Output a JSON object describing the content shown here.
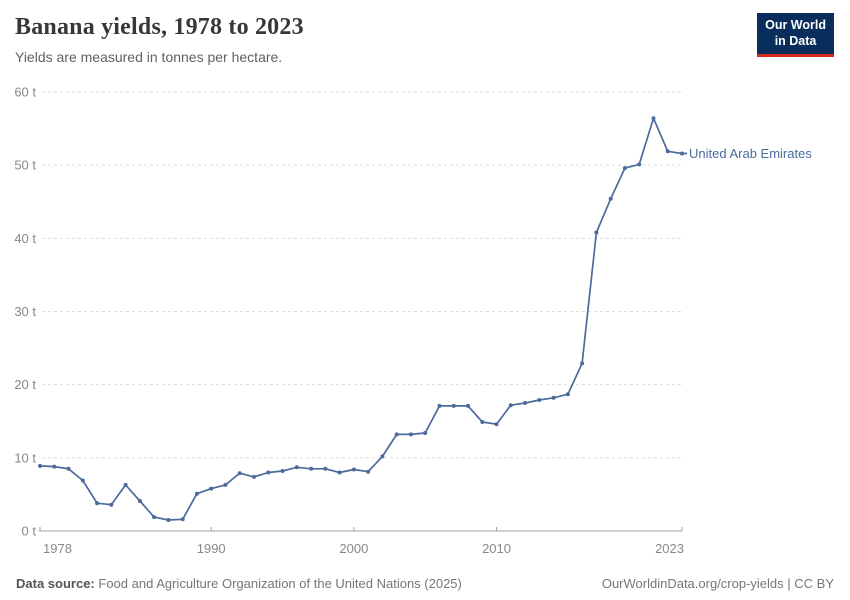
{
  "page": {
    "title": "Banana yields, 1978 to 2023",
    "subtitle": "Yields are measured in tonnes per hectare.",
    "logo": {
      "line1": "Our World",
      "line2": "in Data",
      "bg_color": "#0A2E5C",
      "accent_color": "#D42B21"
    },
    "footer": {
      "source_label": "Data source:",
      "source_text": "Food and Agriculture Organization of the United Nations (2025)",
      "credit": "OurWorldinData.org/crop-yields | CC BY"
    }
  },
  "chart_data": {
    "type": "line",
    "title": "Banana yields, 1978 to 2023",
    "subtitle": "Yields are measured in tonnes per hectare.",
    "xlabel": "",
    "ylabel": "tonnes per hectare",
    "xlim": [
      1978,
      2023
    ],
    "ylim": [
      0,
      60
    ],
    "x_ticks": [
      1978,
      1990,
      2000,
      2010,
      2023
    ],
    "y_ticks": [
      0,
      10,
      20,
      30,
      40,
      50,
      60
    ],
    "y_tick_suffix": " t",
    "grid": true,
    "legend_position": "end-of-line",
    "colors": {
      "line": "#4C6A9C",
      "grid": "#dddddd",
      "axis": "#a3a3a3",
      "tick_text": "#888888"
    },
    "x": [
      1978,
      1979,
      1980,
      1981,
      1982,
      1983,
      1984,
      1985,
      1986,
      1987,
      1988,
      1989,
      1990,
      1991,
      1992,
      1993,
      1994,
      1995,
      1996,
      1997,
      1998,
      1999,
      2000,
      2001,
      2002,
      2003,
      2004,
      2005,
      2006,
      2007,
      2008,
      2009,
      2010,
      2011,
      2012,
      2013,
      2014,
      2015,
      2016,
      2017,
      2018,
      2019,
      2020,
      2021,
      2022,
      2023
    ],
    "series": [
      {
        "name": "United Arab Emirates",
        "color": "#4C6A9C",
        "values": [
          8.9,
          8.8,
          8.5,
          6.9,
          3.8,
          3.6,
          6.3,
          4.1,
          1.9,
          1.5,
          1.6,
          5.1,
          5.8,
          6.3,
          7.9,
          7.4,
          8.0,
          8.2,
          8.7,
          8.5,
          8.5,
          8.0,
          8.4,
          8.1,
          10.2,
          13.2,
          13.2,
          13.4,
          17.1,
          17.1,
          17.1,
          14.9,
          14.6,
          17.2,
          17.5,
          17.9,
          18.2,
          18.7,
          22.9,
          40.8,
          45.4,
          49.6,
          50.1,
          56.4,
          51.9,
          51.6
        ]
      }
    ]
  }
}
